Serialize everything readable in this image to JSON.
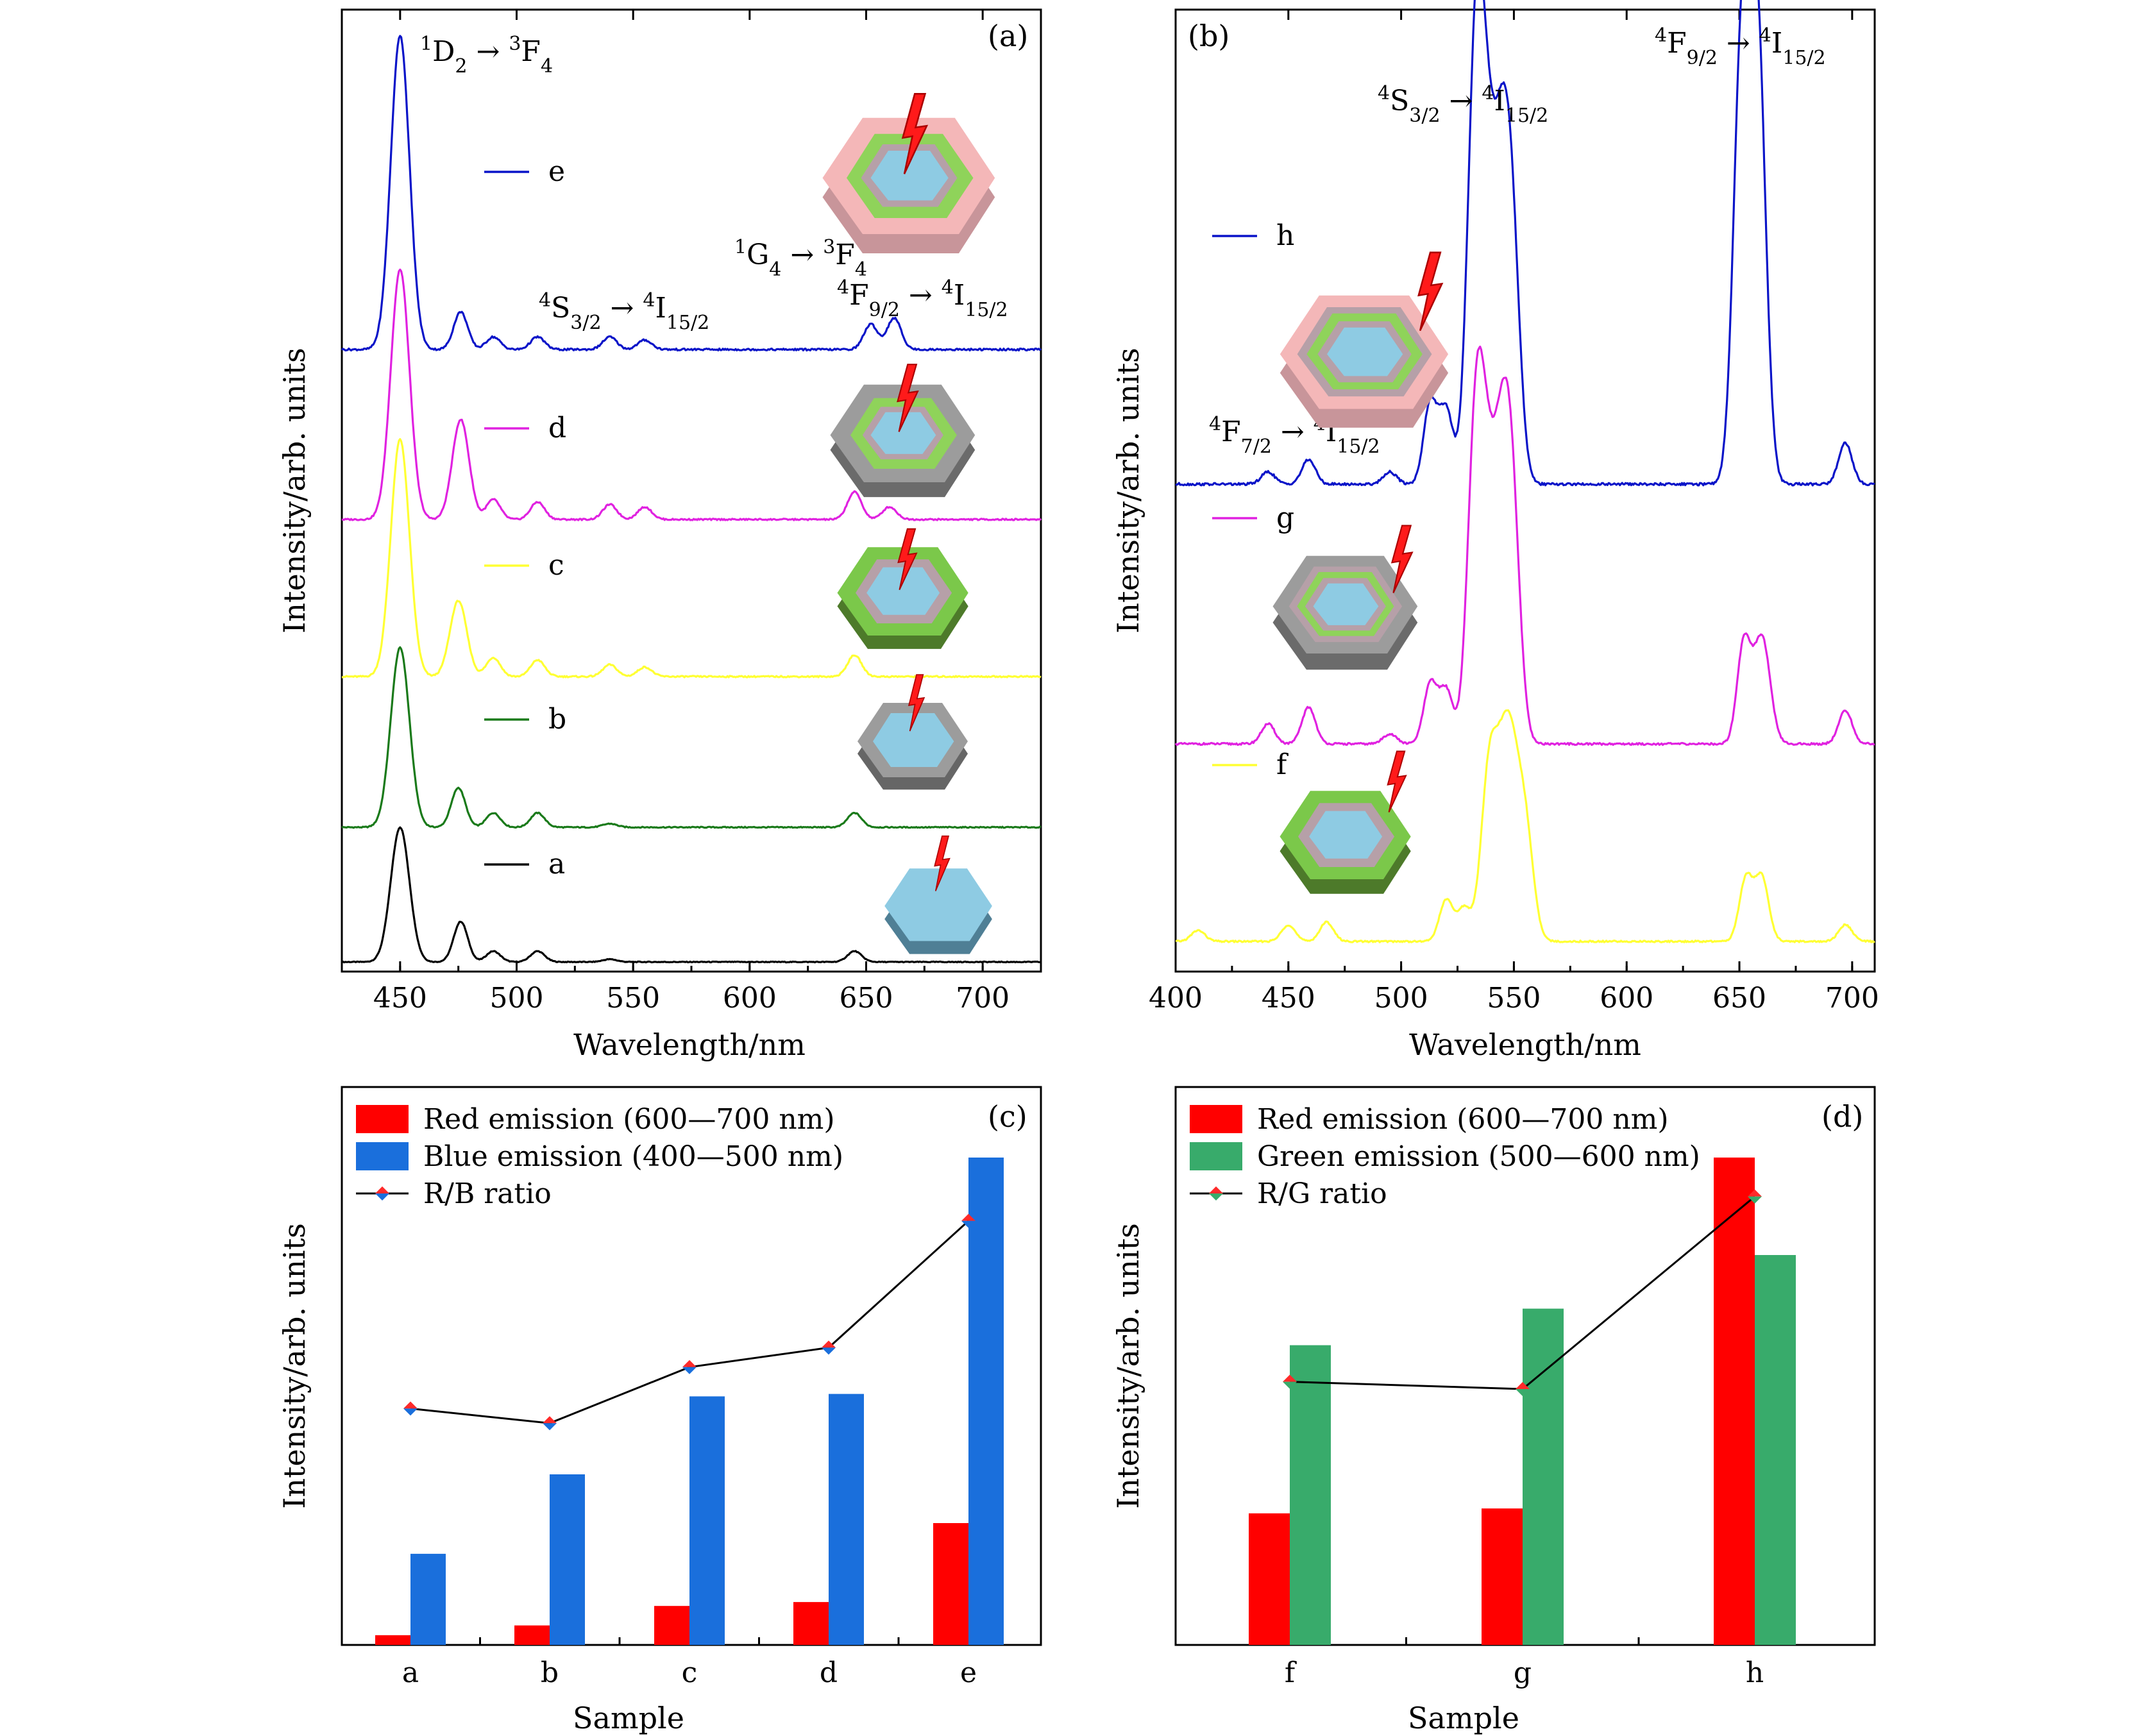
{
  "chart_data": [
    {
      "panel": "(a)",
      "type": "line",
      "xlabel": "Wavelength/nm",
      "ylabel": "Intensity/arb. units",
      "xlim": [
        425,
        725
      ],
      "xticks": [
        450,
        500,
        550,
        600,
        650,
        700
      ],
      "annotations": {
        "t1": {
          "pre": "1",
          "a": "D",
          "asub": "2",
          "arrow": " → ",
          "post": "3",
          "b": "F",
          "bsub": "4"
        },
        "t2": {
          "pre": "4",
          "a": "S",
          "asub": "3/2",
          "arrow": " → ",
          "post": "4",
          "b": "I",
          "bsub": "15/2"
        },
        "t3": {
          "pre": "1",
          "a": "G",
          "asub": "4",
          "arrow": " → ",
          "post": "3",
          "b": "F",
          "bsub": "4"
        },
        "t4": {
          "pre": "4",
          "a": "F",
          "asub": "9/2",
          "arrow": " → ",
          "post": "4",
          "b": "I",
          "bsub": "15/2"
        }
      },
      "series": [
        {
          "name": "a",
          "color": "#000000",
          "peaks": [
            [
              450,
              1.0
            ],
            [
              476,
              0.3
            ],
            [
              490,
              0.08
            ],
            [
              509,
              0.08
            ],
            [
              540,
              0.02
            ],
            [
              645,
              0.08
            ]
          ]
        },
        {
          "name": "b",
          "color": "#1a7a1a",
          "peaks": [
            [
              450,
              1.0
            ],
            [
              475,
              0.22
            ],
            [
              490,
              0.08
            ],
            [
              509,
              0.08
            ],
            [
              540,
              0.02
            ],
            [
              645,
              0.08
            ]
          ]
        },
        {
          "name": "c",
          "color": "#ffff33",
          "peaks": [
            [
              450,
              1.0
            ],
            [
              475,
              0.32
            ],
            [
              490,
              0.08
            ],
            [
              509,
              0.07
            ],
            [
              540,
              0.05
            ],
            [
              555,
              0.04
            ],
            [
              645,
              0.09
            ]
          ]
        },
        {
          "name": "d",
          "color": "#e022e0",
          "peaks": [
            [
              450,
              1.0
            ],
            [
              476,
              0.4
            ],
            [
              490,
              0.08
            ],
            [
              509,
              0.07
            ],
            [
              540,
              0.06
            ],
            [
              555,
              0.05
            ],
            [
              645,
              0.11
            ],
            [
              660,
              0.05
            ]
          ]
        },
        {
          "name": "e",
          "color": "#0a14c8",
          "peaks": [
            [
              450,
              1.0
            ],
            [
              476,
              0.12
            ],
            [
              490,
              0.04
            ],
            [
              509,
              0.04
            ],
            [
              540,
              0.04
            ],
            [
              555,
              0.03
            ],
            [
              652,
              0.08
            ],
            [
              662,
              0.1
            ]
          ]
        }
      ]
    },
    {
      "panel": "(b)",
      "type": "line",
      "xlabel": "Wavelength/nm",
      "ylabel": "Intensity/arb. units",
      "xlim": [
        400,
        710
      ],
      "xticks": [
        400,
        450,
        500,
        550,
        600,
        650,
        700
      ],
      "annotations": {
        "t1": {
          "pre": "4",
          "a": "S",
          "asub": "3/2",
          "arrow": " → ",
          "post": "4",
          "b": "I",
          "bsub": "15/2"
        },
        "t2": {
          "pre": "4",
          "a": "F",
          "asub": "9/2",
          "arrow": " → ",
          "post": "4",
          "b": "I",
          "bsub": "15/2"
        },
        "t3": {
          "pre": "4",
          "a": "F",
          "asub": "7/2",
          "arrow": " → ",
          "post": "4",
          "b": "I",
          "bsub": "15/2"
        }
      },
      "series": [
        {
          "name": "f",
          "color": "#ffff33",
          "peaks": [
            [
              410,
              0.04
            ],
            [
              450,
              0.06
            ],
            [
              467,
              0.07
            ],
            [
              520,
              0.15
            ],
            [
              528,
              0.12
            ],
            [
              539,
              0.6
            ],
            [
              545,
              0.4
            ],
            [
              549,
              0.48
            ],
            [
              555,
              0.4
            ],
            [
              653,
              0.23
            ],
            [
              660,
              0.23
            ],
            [
              697,
              0.06
            ]
          ]
        },
        {
          "name": "g",
          "color": "#e022e0",
          "peaks": [
            [
              441,
              0.06
            ],
            [
              459,
              0.11
            ],
            [
              495,
              0.03
            ],
            [
              513,
              0.18
            ],
            [
              520,
              0.16
            ],
            [
              533,
              0.9
            ],
            [
              538,
              0.55
            ],
            [
              544,
              0.65
            ],
            [
              549,
              0.7
            ],
            [
              652,
              0.3
            ],
            [
              660,
              0.32
            ],
            [
              697,
              0.1
            ]
          ]
        },
        {
          "name": "h",
          "color": "#0a14c8",
          "peaks": [
            [
              441,
              0.03
            ],
            [
              459,
              0.06
            ],
            [
              495,
              0.03
            ],
            [
              513,
              0.2
            ],
            [
              520,
              0.18
            ],
            [
              533,
              1.0
            ],
            [
              538,
              0.55
            ],
            [
              544,
              0.6
            ],
            [
              549,
              0.58
            ],
            [
              651,
              1.05
            ],
            [
              658,
              1.08
            ],
            [
              697,
              0.1
            ]
          ]
        }
      ]
    },
    {
      "panel": "(c)",
      "type": "bar",
      "xlabel": "Sample",
      "ylabel": "Intensity/arb. units",
      "categories": [
        "a",
        "b",
        "c",
        "d",
        "e"
      ],
      "ylim": [
        0,
        100
      ],
      "legend_position": "top-left",
      "series": [
        {
          "name": "Red emission (600—700 nm)",
          "color": "#ff0000",
          "values": [
            2,
            4,
            8,
            8.8,
            25
          ]
        },
        {
          "name": "Blue emission (400—500 nm)",
          "color": "#1a6fdc",
          "values": [
            18.7,
            35,
            51,
            51.5,
            100
          ]
        },
        {
          "name": "R/B ratio",
          "type": "line",
          "color": "#000000",
          "marker_colors": [
            "#ff2a2a",
            "#1a6fdc"
          ],
          "values": [
            48.5,
            45.5,
            57,
            61,
            87
          ]
        }
      ]
    },
    {
      "panel": "(d)",
      "type": "bar",
      "xlabel": "Sample",
      "ylabel": "Intensity/arb. units",
      "categories": [
        "f",
        "g",
        "h"
      ],
      "ylim": [
        0,
        100
      ],
      "legend_position": "top-left",
      "series": [
        {
          "name": "Red emission (600—700 nm)",
          "color": "#ff0000",
          "values": [
            27,
            28,
            100
          ]
        },
        {
          "name": "Green emission (500—600 nm)",
          "color": "#38ab6b",
          "values": [
            61.5,
            69,
            80
          ]
        },
        {
          "name": "R/G ratio",
          "type": "line",
          "color": "#000000",
          "marker_colors": [
            "#ff2a2a",
            "#38ab6b"
          ],
          "values": [
            54,
            52.5,
            92
          ]
        }
      ]
    }
  ]
}
